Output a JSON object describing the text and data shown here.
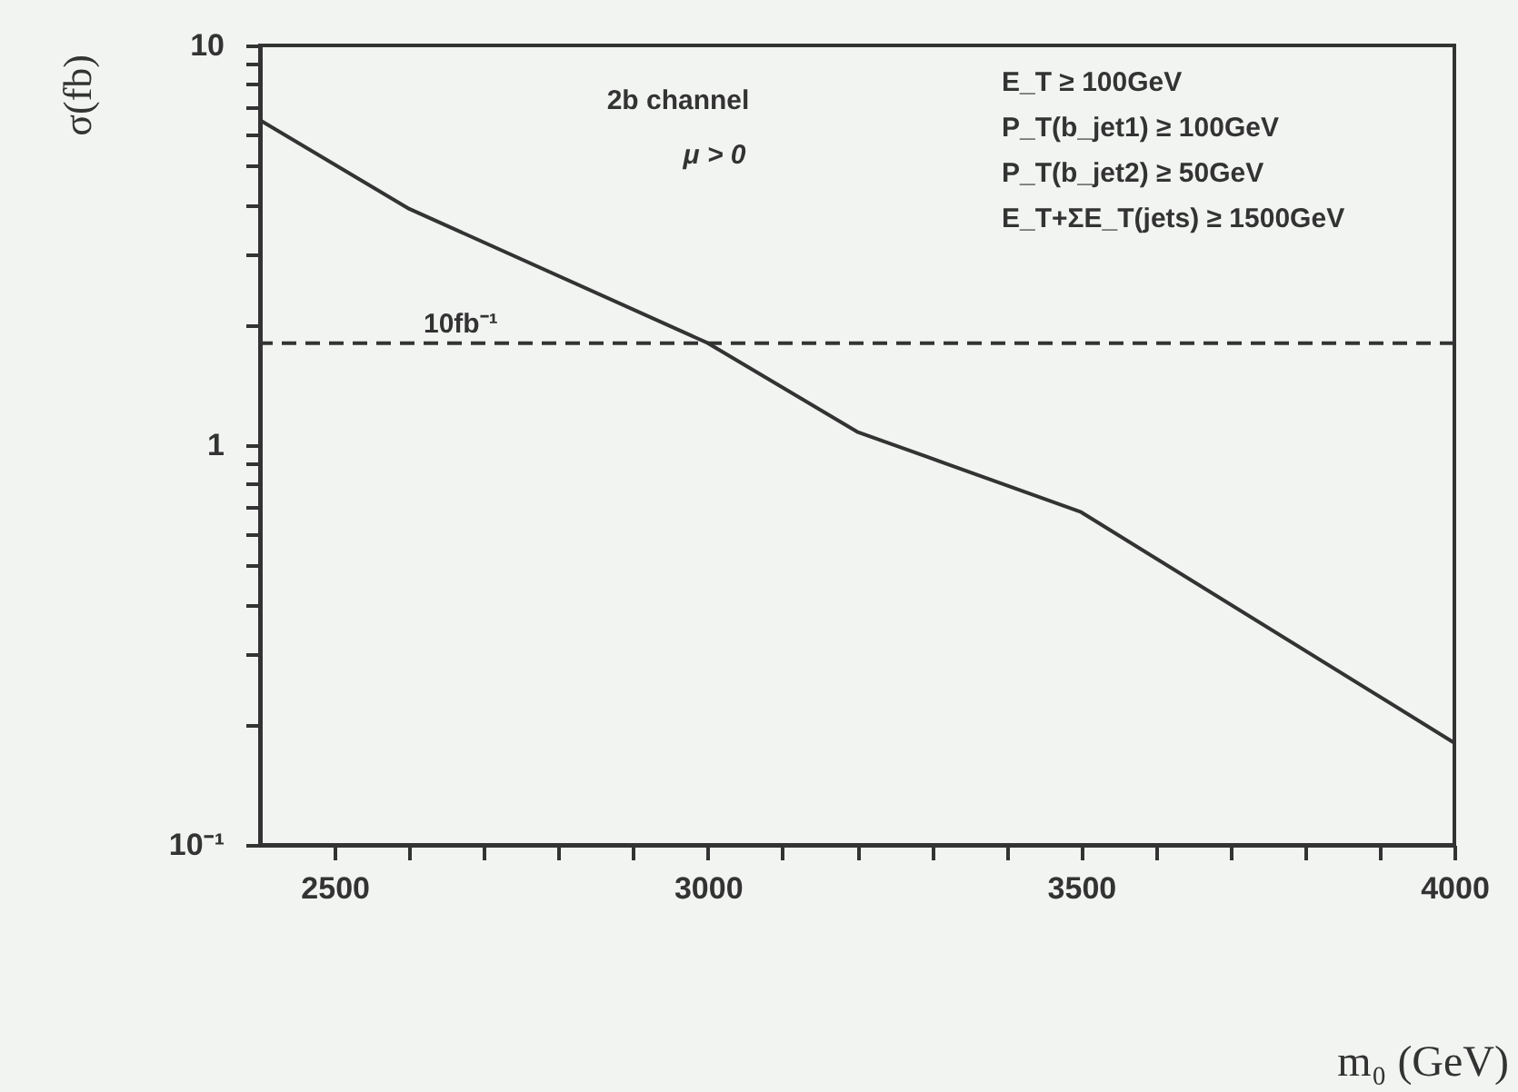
{
  "chart_data": {
    "type": "line",
    "xlabel": "m₀ (GeV)",
    "ylabel": "σ(fb)",
    "x": [
      2400,
      2600,
      3000,
      3200,
      3500,
      4000
    ],
    "series": [
      {
        "color": "#333333",
        "values": [
          6.5,
          3.9,
          1.8,
          1.08,
          0.68,
          0.18
        ]
      }
    ],
    "xlim": [
      2400,
      4000
    ],
    "xticks": [
      2500,
      {
        "value": 2600,
        "label": null
      },
      {
        "value": 2700,
        "label": null
      },
      {
        "value": 2800,
        "label": null
      },
      {
        "value": 2900,
        "label": null
      },
      3000,
      {
        "value": 3100,
        "label": null
      },
      {
        "value": 3200,
        "label": null
      },
      {
        "value": 3300,
        "label": null
      },
      {
        "value": 3400,
        "label": null
      },
      3500,
      {
        "value": 3600,
        "label": null
      },
      {
        "value": 3700,
        "label": null
      },
      {
        "value": 3800,
        "label": null
      },
      {
        "value": 3900,
        "label": null
      },
      4000
    ],
    "ylim": [
      0.1,
      10
    ],
    "log": true,
    "yticks": [
      {
        "value": 0.1,
        "label": "10⁻¹"
      },
      {
        "value": 0.2,
        "label": null
      },
      {
        "value": 0.3,
        "label": null
      },
      {
        "value": 0.4,
        "label": null
      },
      {
        "value": 0.5,
        "label": null
      },
      {
        "value": 0.6,
        "label": null
      },
      {
        "value": 0.7,
        "label": null
      },
      {
        "value": 0.8,
        "label": null
      },
      {
        "value": 0.9,
        "label": null
      },
      1,
      {
        "value": 2,
        "label": null
      },
      {
        "value": 3,
        "label": null
      },
      {
        "value": 4,
        "label": null
      },
      {
        "value": 5,
        "label": null
      },
      {
        "value": 6,
        "label": null
      },
      {
        "value": 7,
        "label": null
      },
      {
        "value": 8,
        "label": null
      },
      {
        "value": 9,
        "label": null
      },
      10
    ],
    "grid": false,
    "marker": "none",
    "line_style": "solid",
    "ref_lines": [
      {
        "axis": "y",
        "value": 1.8,
        "label": "10fb⁻¹",
        "color": "#333333",
        "line_style": "dashed"
      }
    ],
    "annotations": [
      "2b channel",
      "μ > 0",
      "E_T ≥ 100GeV",
      "P_T(b_jet1) ≥ 100GeV",
      "P_T(b_jet2) ≥ 50GeV",
      "E_T+ΣE_T(jets) ≥ 1500GeV"
    ]
  }
}
